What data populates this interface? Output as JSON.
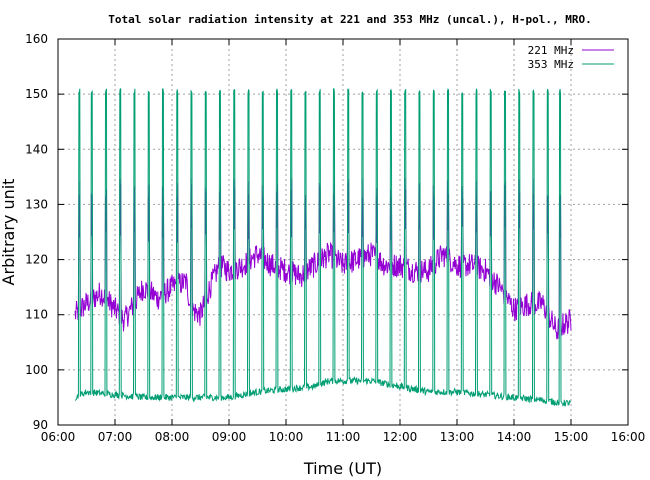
{
  "chart_data": {
    "type": "line",
    "title": "Total solar radiation intensity at 221 and 353 MHz (uncal.), H-pol., MRO.",
    "xlabel": "Time (UT)",
    "ylabel": "Arbitrary unit",
    "xlim": [
      "06:00",
      "16:00"
    ],
    "ylim": [
      90,
      160
    ],
    "x_ticks": [
      "06:00",
      "07:00",
      "08:00",
      "09:00",
      "10:00",
      "11:00",
      "12:00",
      "13:00",
      "14:00",
      "15:00",
      "16:00"
    ],
    "y_ticks": [
      "90",
      "100",
      "110",
      "120",
      "130",
      "140",
      "150",
      "160"
    ],
    "grid": true,
    "legend_position": "top-right",
    "series": [
      {
        "name": "221 MHz",
        "color": "#9400d3",
        "x": [
          "06:18",
          "06:30",
          "06:45",
          "07:00",
          "07:10",
          "07:20",
          "07:30",
          "07:45",
          "08:00",
          "08:15",
          "08:20",
          "08:30",
          "08:40",
          "08:50",
          "09:00",
          "09:15",
          "09:30",
          "09:45",
          "10:00",
          "10:15",
          "10:30",
          "10:45",
          "11:00",
          "11:15",
          "11:30",
          "11:45",
          "12:00",
          "12:15",
          "12:30",
          "12:45",
          "13:00",
          "13:15",
          "13:30",
          "13:45",
          "14:00",
          "14:15",
          "14:30",
          "14:45",
          "14:50",
          "15:00"
        ],
        "values": [
          110,
          112,
          114,
          111,
          109,
          112,
          115,
          113,
          115,
          116,
          111,
          110,
          115,
          119,
          118,
          119,
          121,
          119,
          118,
          117,
          119,
          121,
          119,
          120,
          121,
          119,
          119,
          118,
          118,
          121,
          119,
          119,
          118,
          115,
          111,
          112,
          112,
          107,
          108,
          109
        ],
        "calibration_spikes": {
          "times": [
            "06:22",
            "06:35",
            "06:50",
            "07:05",
            "07:20",
            "07:35",
            "07:50",
            "08:05",
            "08:20",
            "08:35",
            "08:50",
            "09:05",
            "09:20",
            "09:35",
            "09:50",
            "10:05",
            "10:20",
            "10:35",
            "10:50",
            "11:05",
            "11:20",
            "11:35",
            "11:50",
            "12:05",
            "12:20",
            "12:35",
            "12:50",
            "13:05",
            "13:20",
            "13:35",
            "13:50",
            "14:05",
            "14:20",
            "14:35",
            "14:48"
          ],
          "peak": 135,
          "trough": 123
        }
      },
      {
        "name": "353 MHz",
        "color": "#009e73",
        "x": [
          "06:18",
          "06:30",
          "07:00",
          "07:30",
          "08:00",
          "08:30",
          "09:00",
          "09:30",
          "10:00",
          "10:30",
          "10:45",
          "11:00",
          "11:30",
          "12:00",
          "12:30",
          "13:00",
          "13:30",
          "14:00",
          "14:30",
          "14:50",
          "15:00"
        ],
        "values": [
          95,
          96,
          95.5,
          95,
          95,
          95,
          95,
          96,
          96.5,
          97,
          98,
          98,
          98,
          97,
          96,
          96,
          95.5,
          95,
          94.5,
          94,
          94
        ],
        "calibration_spikes": {
          "times": [
            "06:22",
            "06:35",
            "06:50",
            "07:05",
            "07:20",
            "07:35",
            "07:50",
            "08:05",
            "08:20",
            "08:35",
            "08:50",
            "09:05",
            "09:20",
            "09:35",
            "09:50",
            "10:05",
            "10:20",
            "10:35",
            "10:50",
            "11:05",
            "11:20",
            "11:35",
            "11:50",
            "12:05",
            "12:20",
            "12:35",
            "12:50",
            "13:05",
            "13:20",
            "13:35",
            "13:50",
            "14:05",
            "14:20",
            "14:35",
            "14:48"
          ],
          "peak": 151
        }
      }
    ]
  }
}
